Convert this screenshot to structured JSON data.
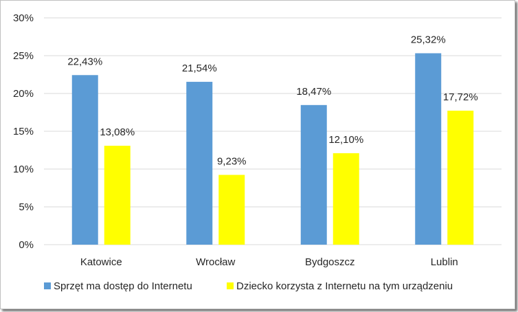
{
  "chart_data": {
    "type": "bar",
    "categories": [
      "Katowice",
      "Wrocław",
      "Bydgoszcz",
      "Lublin"
    ],
    "series": [
      {
        "name": "Sprzęt ma dostęp do Internetu",
        "values": [
          22.43,
          21.54,
          18.47,
          25.32
        ],
        "labels": [
          "22,43%",
          "21,54%",
          "18,47%",
          "25,32%"
        ],
        "color": "#5b9bd5"
      },
      {
        "name": "Dziecko korzysta z Internetu na tym urządzeniu",
        "values": [
          13.08,
          9.23,
          12.1,
          17.72
        ],
        "labels": [
          "13,08%",
          "9,23%",
          "12,10%",
          "17,72%"
        ],
        "color": "#ffff00"
      }
    ],
    "yticks": [
      "0%",
      "5%",
      "10%",
      "15%",
      "20%",
      "25%",
      "30%"
    ],
    "ylim": [
      0,
      30
    ],
    "title": "",
    "xlabel": "",
    "ylabel": "",
    "grid": true,
    "gridColor": "#d9d9d9",
    "legend": "bottom"
  }
}
